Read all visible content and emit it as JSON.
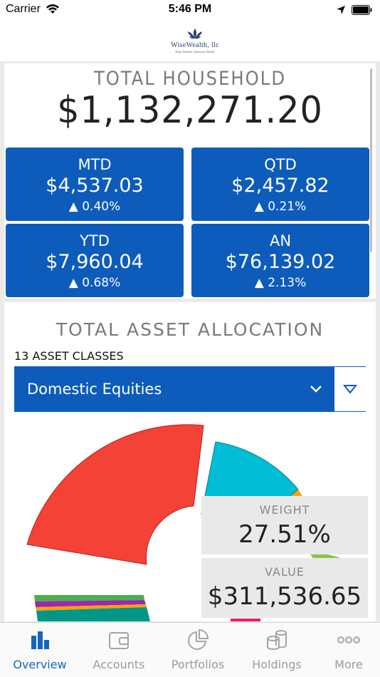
{
  "status_bar": {
    "carrier": "Carrier",
    "time": "5:46 PM"
  },
  "header": {
    "logo_text": "WiseWealth, llc",
    "logo_tagline": "Today Wisdom. Tomorrow Wealth."
  },
  "household": {
    "title": "TOTAL HOUSEHOLD",
    "value": "$1,132,271.20",
    "tiles": [
      {
        "label": "MTD",
        "amount": "$4,537.03",
        "change": "▲ 0.40%"
      },
      {
        "label": "QTD",
        "amount": "$2,457.82",
        "change": "▲ 0.21%"
      },
      {
        "label": "YTD",
        "amount": "$7,960.04",
        "change": "▲ 0.68%"
      },
      {
        "label": "AN",
        "amount": "$76,139.02",
        "change": "▲ 2.13%"
      }
    ]
  },
  "allocation": {
    "title": "TOTAL ASSET ALLOCATION",
    "count_label": "13 ASSET CLASSES",
    "selected": "Domestic Equities",
    "weight_label": "WEIGHT",
    "weight": "27.51%",
    "value_label": "VALUE",
    "value": "$311,536.65",
    "colors": {
      "selected": "#f44336",
      "teal": "#00bcd4",
      "orange": "#ffa000",
      "green": "#8bc34a",
      "purple": "#9c27b0",
      "darkteal": "#009688",
      "lightgreen": "#4caf50"
    }
  },
  "tabs": [
    {
      "label": "Overview",
      "icon": "bar-chart-icon",
      "active": true
    },
    {
      "label": "Accounts",
      "icon": "wallet-icon",
      "active": false
    },
    {
      "label": "Portfolios",
      "icon": "pie-chart-icon",
      "active": false
    },
    {
      "label": "Holdings",
      "icon": "coins-icon",
      "active": false
    },
    {
      "label": "More",
      "icon": "more-icon",
      "active": false
    }
  ],
  "accent_color": "#0d5cbc"
}
